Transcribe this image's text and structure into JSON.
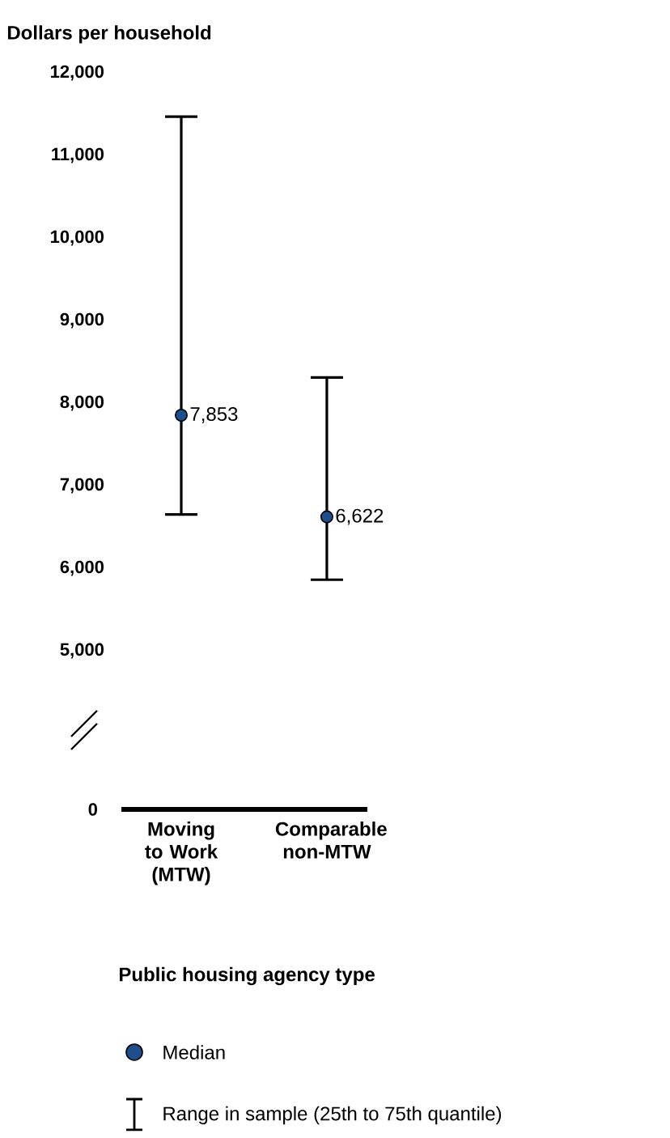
{
  "chart_data": [
    {
      "type": "scatter",
      "ylabel": "Dollars per household",
      "categories": [
        "Moving to Work (MTW)",
        "Comparable non-MTW"
      ],
      "series": [
        {
          "name": "Median",
          "color": "#1f4e8c",
          "values": [
            7853,
            6622
          ],
          "errors": [
            [
              6650,
              11470
            ],
            [
              5860,
              8310
            ]
          ],
          "value_labels": [
            "7,853",
            "6,622"
          ]
        }
      ],
      "ylim": [
        5000,
        12000
      ],
      "yticks": [
        {
          "value": 5000,
          "label": "5,000"
        },
        {
          "value": 6000,
          "label": "6,000"
        },
        {
          "value": 7000,
          "label": "7,000"
        },
        {
          "value": 8000,
          "label": "8,000"
        },
        {
          "value": 9000,
          "label": "9,000"
        },
        {
          "value": 10000,
          "label": "10,000"
        },
        {
          "value": 11000,
          "label": "11,000"
        },
        {
          "value": 12000,
          "label": "12,000"
        }
      ],
      "marker": "circle",
      "tick_labels": "y",
      "legend": "bottom"
    },
    {
      "type": "other",
      "xlabel": "Public housing agency type",
      "annotations": [
        "0",
        "Range in sample (25th to 75th quantile)"
      ]
    }
  ]
}
